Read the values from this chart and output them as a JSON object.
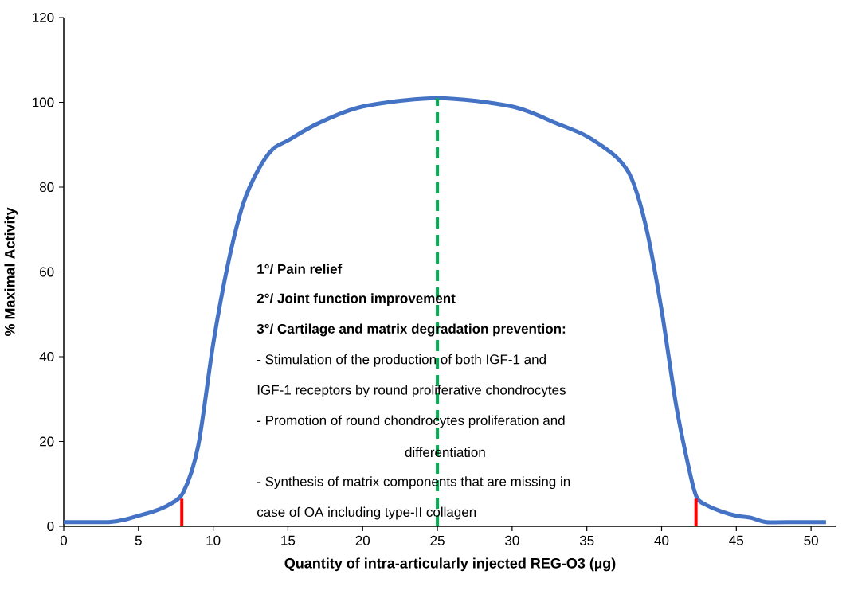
{
  "chart_data": {
    "type": "line",
    "xlabel": "Quantity of intra-articularly injected REG-O3 (µg)",
    "ylabel": "% Maximal Activity",
    "xlim": [
      0,
      51.7
    ],
    "ylim": [
      0,
      120
    ],
    "xticks": [
      0,
      5,
      10,
      15,
      20,
      25,
      30,
      35,
      40,
      45,
      50
    ],
    "yticks": [
      0,
      20,
      40,
      60,
      80,
      100,
      120
    ],
    "grid": false,
    "marker": "none",
    "series": [
      {
        "color": "#4472c4",
        "line_style": "solid",
        "x": [
          0,
          2,
          3,
          4,
          5,
          6,
          7,
          8,
          9,
          10,
          11,
          12,
          13,
          14,
          15,
          17,
          20,
          25,
          30,
          33,
          35,
          37,
          38,
          39,
          40,
          41,
          42,
          42.4,
          43,
          44,
          45,
          46,
          47,
          49,
          51
        ],
        "values": [
          1,
          1,
          1,
          1.5,
          2.5,
          3.5,
          5,
          8,
          19,
          43,
          62,
          76,
          84,
          89,
          91,
          95,
          99,
          101,
          99,
          95,
          92,
          87,
          82,
          70,
          51,
          28,
          11,
          6.5,
          5,
          3.5,
          2.5,
          2,
          1,
          1,
          1
        ]
      },
      {
        "color": "#ff0000",
        "line_style": "solid",
        "x": [
          7.9,
          7.9
        ],
        "values": [
          0,
          6.5
        ]
      },
      {
        "color": "#ff0000",
        "line_style": "solid",
        "x": [
          42.3,
          42.3
        ],
        "values": [
          0,
          6.5
        ]
      },
      {
        "color": "#00b050",
        "line_style": "dashed",
        "x": [
          25,
          25
        ],
        "values": [
          0,
          101
        ]
      }
    ],
    "annotations": [
      "**1°/ Pain relief**",
      "**2°/ Joint function improvement**",
      "**3°/ Cartilage and matrix degradation prevention:**",
      "- Stimulation of the production of both IGF-1 and",
      "IGF-1 receptors by round proliferative chondrocytes",
      "- Promotion of round chondrocytes proliferation and",
      "differentiation",
      "- Synthesis of matrix components that are missing in",
      "case of OA including type-II collagen"
    ]
  }
}
